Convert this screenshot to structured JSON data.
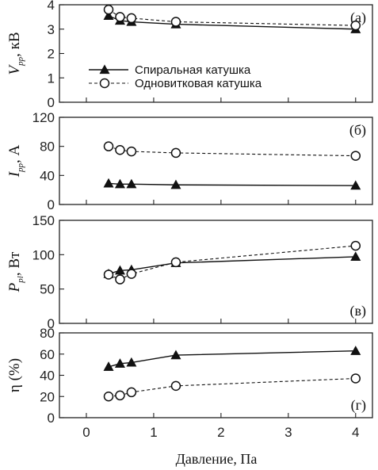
{
  "chart_data": {
    "type": "line",
    "xlabel": "Давление, Па",
    "x_ticks": [
      "0",
      "1",
      "2",
      "3",
      "4"
    ],
    "xlim": [
      -0.4,
      4.25
    ],
    "legend": {
      "placement": "inside panel (а), lower-left",
      "entries": [
        {
          "series": "Спиральная катушка",
          "style": "solid line, filled triangles"
        },
        {
          "series": "Одновитковая катушка",
          "style": "dashed line, open circles"
        }
      ]
    },
    "panels": [
      {
        "id": "a",
        "label": "(а)",
        "ylabel_main": "V",
        "ylabel_sub": "pp",
        "ylabel_rest": ", кВ",
        "ylim": [
          0,
          4
        ],
        "y_ticks": [
          "0",
          "1",
          "2",
          "3",
          "4"
        ],
        "series": [
          {
            "name": "Спиральная катушка",
            "x": [
              0.33,
              0.5,
              0.67,
              1.33,
              4.0
            ],
            "y": [
              3.55,
              3.35,
              3.3,
              3.2,
              3.0
            ]
          },
          {
            "name": "Одновитковая катушка",
            "x": [
              0.33,
              0.5,
              0.67,
              1.33,
              4.0
            ],
            "y": [
              3.8,
              3.5,
              3.45,
              3.3,
              3.15
            ]
          }
        ]
      },
      {
        "id": "b",
        "label": "(б)",
        "ylabel_main": "I",
        "ylabel_sub": "pp",
        "ylabel_rest": ", А",
        "ylim": [
          0,
          120
        ],
        "y_ticks": [
          "0",
          "40",
          "80",
          "120"
        ],
        "series": [
          {
            "name": "Спиральная катушка",
            "x": [
              0.33,
              0.5,
              0.67,
              1.33,
              4.0
            ],
            "y": [
              29,
              28,
              28,
              27,
              26
            ]
          },
          {
            "name": "Одновитковая катушка",
            "x": [
              0.33,
              0.5,
              0.67,
              1.33,
              4.0
            ],
            "y": [
              80,
              75,
              73,
              71,
              67
            ]
          }
        ]
      },
      {
        "id": "c",
        "label": "(в)",
        "ylabel_main": "P",
        "ylabel_sub": "pl",
        "ylabel_rest": ", Вт",
        "ylim": [
          0,
          150
        ],
        "y_ticks": [
          "0",
          "50",
          "100",
          "150"
        ],
        "series": [
          {
            "name": "Спиральная катушка",
            "x": [
              0.33,
              0.5,
              0.67,
              1.33,
              4.0
            ],
            "y": [
              72,
              77,
              78,
              88,
              97
            ]
          },
          {
            "name": "Одновитковая катушка",
            "x": [
              0.33,
              0.5,
              0.67,
              1.33,
              4.0
            ],
            "y": [
              71,
              64,
              72,
              89,
              113
            ]
          }
        ]
      },
      {
        "id": "d",
        "label": "(г)",
        "ylabel_main": "η (%)",
        "ylabel_sub": "",
        "ylabel_rest": "",
        "ylim": [
          0,
          80
        ],
        "y_ticks": [
          "0",
          "20",
          "40",
          "60",
          "80"
        ],
        "series": [
          {
            "name": "Спиральная катушка",
            "x": [
              0.33,
              0.5,
              0.67,
              1.33,
              4.0
            ],
            "y": [
              48,
              51,
              52,
              59,
              63
            ]
          },
          {
            "name": "Одновитковая катушка",
            "x": [
              0.33,
              0.5,
              0.67,
              1.33,
              4.0
            ],
            "y": [
              20,
              21,
              24,
              30,
              37
            ]
          }
        ]
      }
    ]
  }
}
